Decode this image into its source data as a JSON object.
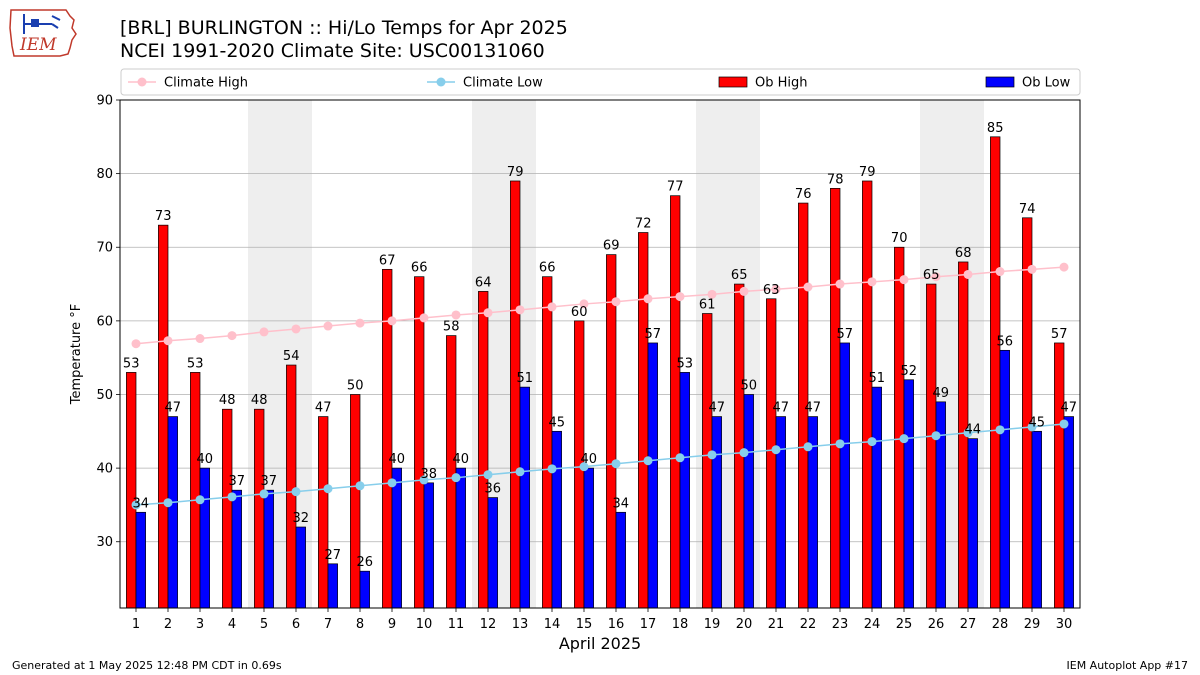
{
  "header": {
    "title_line1": "[BRL] BURLINGTON :: Hi/Lo Temps for Apr 2025",
    "title_line2": "NCEI 1991-2020 Climate Site: USC00131060",
    "logo_text": "IEM",
    "logo_icon": "iowa-state-weather-station-logo"
  },
  "footer": {
    "left": "Generated at 1 May 2025 12:48 PM CDT in 0.69s",
    "right": "IEM Autoplot App #17"
  },
  "colors": {
    "ob_high": "#ff0000",
    "ob_low": "#0000ff",
    "climate_high": "#ffc0cb",
    "climate_low": "#87ceeb",
    "weekend_band": "#eeeeee",
    "grid": "#b0b0b0"
  },
  "chart_data": {
    "type": "bar",
    "xlabel": "April 2025",
    "ylabel": "Temperature °F",
    "ylim": [
      21,
      90
    ],
    "yticks": [
      30,
      40,
      50,
      60,
      70,
      80,
      90
    ],
    "grid": "horizontal",
    "legend_position": "top",
    "categories": [
      1,
      2,
      3,
      4,
      5,
      6,
      7,
      8,
      9,
      10,
      11,
      12,
      13,
      14,
      15,
      16,
      17,
      18,
      19,
      20,
      21,
      22,
      23,
      24,
      25,
      26,
      27,
      28,
      29,
      30
    ],
    "shaded_days": [
      5,
      6,
      12,
      13,
      19,
      20,
      26,
      27
    ],
    "series": [
      {
        "name": "Climate High",
        "kind": "line",
        "values": [
          56.9,
          57.3,
          57.6,
          58.0,
          58.5,
          58.9,
          59.3,
          59.7,
          60.0,
          60.4,
          60.8,
          61.1,
          61.5,
          61.9,
          62.3,
          62.6,
          63.0,
          63.3,
          63.6,
          64.0,
          64.3,
          64.6,
          65.0,
          65.3,
          65.6,
          66.0,
          66.3,
          66.7,
          67.0,
          67.3
        ]
      },
      {
        "name": "Climate Low",
        "kind": "line",
        "values": [
          35.0,
          35.3,
          35.7,
          36.1,
          36.5,
          36.8,
          37.2,
          37.6,
          38.0,
          38.4,
          38.7,
          39.1,
          39.5,
          39.9,
          40.2,
          40.6,
          41.0,
          41.4,
          41.8,
          42.1,
          42.5,
          42.9,
          43.3,
          43.6,
          44.0,
          44.4,
          44.8,
          45.2,
          45.6,
          46.0
        ]
      },
      {
        "name": "Ob High",
        "kind": "bar",
        "values": [
          53,
          73,
          53,
          48,
          48,
          54,
          47,
          50,
          67,
          66,
          58,
          64,
          79,
          66,
          60,
          69,
          72,
          77,
          61,
          65,
          63,
          76,
          78,
          79,
          70,
          65,
          68,
          85,
          74,
          57
        ]
      },
      {
        "name": "Ob Low",
        "kind": "bar",
        "values": [
          34,
          47,
          40,
          37,
          37,
          32,
          27,
          26,
          40,
          38,
          40,
          36,
          51,
          45,
          40,
          34,
          57,
          53,
          47,
          50,
          47,
          47,
          57,
          51,
          52,
          49,
          44,
          56,
          45,
          47
        ]
      }
    ]
  }
}
